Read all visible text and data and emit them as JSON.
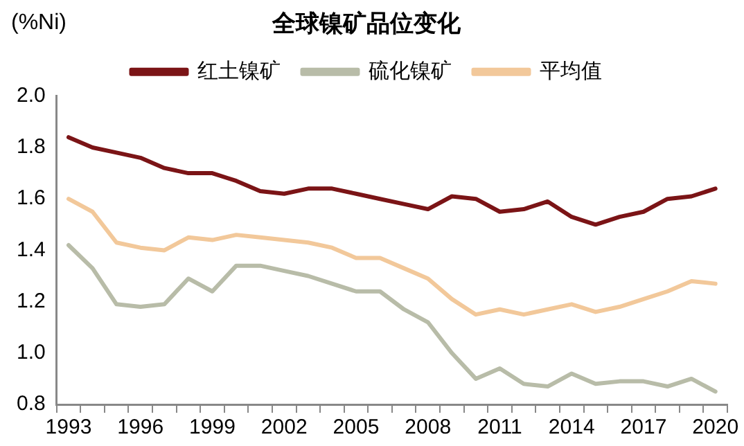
{
  "chart_data": {
    "type": "line",
    "title": "全球镍矿品位变化",
    "ylabel": "(%Ni)",
    "categories": [
      "1993",
      null,
      null,
      "1996",
      null,
      null,
      "1999",
      null,
      null,
      "2002",
      null,
      null,
      "2005",
      null,
      null,
      "2008",
      null,
      null,
      "2011",
      null,
      null,
      "2014",
      null,
      null,
      "2017",
      null,
      null,
      "2020"
    ],
    "series": [
      {
        "name": "红土镍矿",
        "color": "#7b1416",
        "values": [
          1.84,
          1.8,
          1.78,
          1.76,
          1.72,
          1.7,
          1.7,
          1.67,
          1.63,
          1.62,
          1.64,
          1.64,
          1.62,
          1.6,
          1.58,
          1.56,
          1.61,
          1.6,
          1.55,
          1.56,
          1.59,
          1.53,
          1.5,
          1.53,
          1.55,
          1.6,
          1.61,
          1.64
        ]
      },
      {
        "name": "硫化镍矿",
        "color": "#b8bca8",
        "values": [
          1.42,
          1.33,
          1.19,
          1.18,
          1.19,
          1.29,
          1.24,
          1.34,
          1.34,
          1.32,
          1.3,
          1.27,
          1.24,
          1.24,
          1.17,
          1.12,
          1.0,
          0.9,
          0.94,
          0.88,
          0.87,
          0.92,
          0.88,
          0.89,
          0.89,
          0.87,
          0.9,
          0.85
        ]
      },
      {
        "name": "平均值",
        "color": "#f2c89a",
        "values": [
          1.6,
          1.55,
          1.43,
          1.41,
          1.4,
          1.45,
          1.44,
          1.46,
          1.45,
          1.44,
          1.43,
          1.41,
          1.37,
          1.37,
          1.33,
          1.29,
          1.21,
          1.15,
          1.17,
          1.15,
          1.17,
          1.19,
          1.16,
          1.18,
          1.21,
          1.24,
          1.28,
          1.27
        ]
      }
    ],
    "ylim": [
      0.8,
      2.0
    ],
    "yticks": [
      {
        "value": 0.8,
        "label": "0.8"
      },
      {
        "value": 1.0,
        "label": "1.0"
      },
      {
        "value": 1.2,
        "label": "1.2"
      },
      {
        "value": 1.4,
        "label": "1.4"
      },
      {
        "value": 1.6,
        "label": "1.6"
      },
      {
        "value": 1.8,
        "label": "1.8"
      },
      {
        "value": 2.0,
        "label": "2.0"
      }
    ],
    "grid": false,
    "legend": "top",
    "marker": "none",
    "line_style": "solid"
  }
}
